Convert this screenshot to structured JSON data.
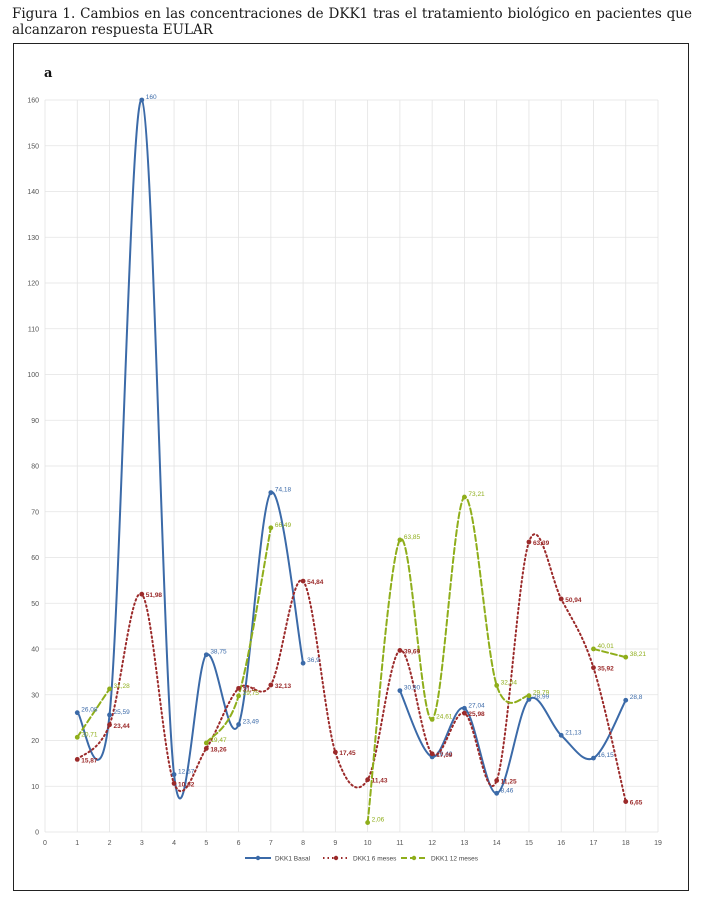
{
  "caption": "Figura 1. Cambios en las concentraciones de DKK1 tras el tratamiento biológico en pacientes que alcanzaron respuesta EULAR",
  "panel_label": "a",
  "chart_data": {
    "type": "line",
    "xlim": [
      0,
      19
    ],
    "ylim": [
      0,
      160
    ],
    "xticks": [
      0,
      1,
      2,
      3,
      4,
      5,
      6,
      7,
      8,
      9,
      10,
      11,
      12,
      13,
      14,
      15,
      16,
      17,
      18,
      19
    ],
    "yticks": [
      0,
      10,
      20,
      30,
      40,
      50,
      60,
      70,
      80,
      90,
      100,
      110,
      120,
      130,
      140,
      150,
      160
    ],
    "grid": true,
    "legend_position": "bottom",
    "series": [
      {
        "name": "DKK1 Basal",
        "color": "#3b6aa8",
        "style": "solid",
        "points": [
          {
            "x": 1,
            "y": 26.08,
            "label": "26,08"
          },
          {
            "x": 2,
            "y": 25.59,
            "label": "25,59"
          },
          {
            "x": 3,
            "y": 160,
            "label": "160"
          },
          {
            "x": 4,
            "y": 12.57,
            "label": "12,57"
          },
          {
            "x": 5,
            "y": 38.75,
            "label": "38,75"
          },
          {
            "x": 6,
            "y": 23.49,
            "label": "23,49"
          },
          {
            "x": 7,
            "y": 74.18,
            "label": "74,18"
          },
          {
            "x": 8,
            "y": 36.9,
            "label": "36,9"
          },
          {
            "x": 11,
            "y": 30.9,
            "label": "30,90"
          },
          {
            "x": 12,
            "y": 16.42,
            "label": "16,42"
          },
          {
            "x": 13,
            "y": 27.04,
            "label": "27,04"
          },
          {
            "x": 14,
            "y": 8.46,
            "label": "8,46"
          },
          {
            "x": 15,
            "y": 28.99,
            "label": "28,99"
          },
          {
            "x": 16,
            "y": 21.13,
            "label": "21,13"
          },
          {
            "x": 17,
            "y": 16.15,
            "label": "16,15"
          },
          {
            "x": 18,
            "y": 28.8,
            "label": "28,8"
          }
        ]
      },
      {
        "name": "DKK1 6 meses",
        "color": "#9b2a2a",
        "style": "dotted",
        "points": [
          {
            "x": 1,
            "y": 15.87,
            "label": "15,87"
          },
          {
            "x": 2,
            "y": 23.44,
            "label": "23,44"
          },
          {
            "x": 3,
            "y": 51.98,
            "label": "51,98"
          },
          {
            "x": 4,
            "y": 10.62,
            "label": "10,62"
          },
          {
            "x": 5,
            "y": 18.26,
            "label": "18,26"
          },
          {
            "x": 6,
            "y": 31.4,
            "label": "31,4"
          },
          {
            "x": 7,
            "y": 32.13,
            "label": "32,13"
          },
          {
            "x": 8,
            "y": 54.84,
            "label": "54,84"
          },
          {
            "x": 9,
            "y": 17.45,
            "label": "17,45"
          },
          {
            "x": 10,
            "y": 11.43,
            "label": "11,43"
          },
          {
            "x": 11,
            "y": 39.69,
            "label": "39,69"
          },
          {
            "x": 12,
            "y": 17.09,
            "label": "17,09"
          },
          {
            "x": 13,
            "y": 25.98,
            "label": "25,98"
          },
          {
            "x": 14,
            "y": 11.25,
            "label": "11,25"
          },
          {
            "x": 15,
            "y": 63.39,
            "label": "63,39"
          },
          {
            "x": 16,
            "y": 50.94,
            "label": "50,94"
          },
          {
            "x": 17,
            "y": 35.92,
            "label": "35,92"
          },
          {
            "x": 18,
            "y": 6.65,
            "label": "6,65"
          }
        ]
      },
      {
        "name": "DKK1 12 meses",
        "color": "#8fae1b",
        "style": "dashed",
        "points": [
          {
            "x": 1,
            "y": 20.71,
            "label": "20,71"
          },
          {
            "x": 2,
            "y": 31.28,
            "label": "31,28"
          },
          {
            "x": 5,
            "y": 19.47,
            "label": "19,47"
          },
          {
            "x": 6,
            "y": 29.75,
            "label": "29,75"
          },
          {
            "x": 7,
            "y": 66.49,
            "label": "66,49"
          },
          {
            "x": 10,
            "y": 2.06,
            "label": "2,06"
          },
          {
            "x": 11,
            "y": 63.85,
            "label": "63,85"
          },
          {
            "x": 12,
            "y": 24.61,
            "label": "24,61"
          },
          {
            "x": 13,
            "y": 73.21,
            "label": "73,21"
          },
          {
            "x": 14,
            "y": 32.04,
            "label": "32,04"
          },
          {
            "x": 15,
            "y": 29.79,
            "label": "29,79"
          },
          {
            "x": 17,
            "y": 40.01,
            "label": "40,01"
          },
          {
            "x": 18,
            "y": 38.21,
            "label": "38,21"
          }
        ]
      }
    ]
  }
}
